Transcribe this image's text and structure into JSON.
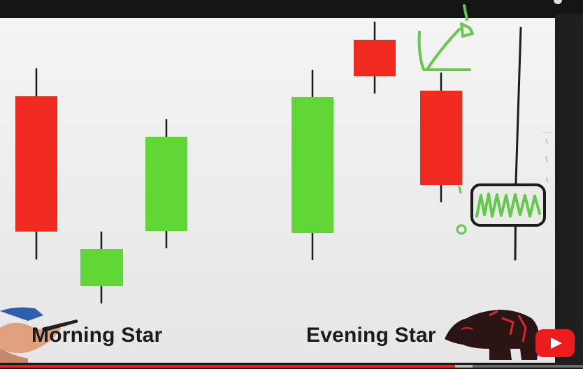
{
  "video": {
    "progress": 0.78,
    "buffered": 0.81
  },
  "slide": {
    "morning_label": "Morning Star",
    "evening_label": "Evening Star"
  },
  "colors": {
    "bullish": "#5fd633",
    "bearish": "#f02a1e",
    "annotation_green": "#63c94a",
    "wick": "#1a1a1a"
  },
  "icons": {
    "player_logo": "youtube-play-icon",
    "bear": "bear-logo-icon"
  }
}
